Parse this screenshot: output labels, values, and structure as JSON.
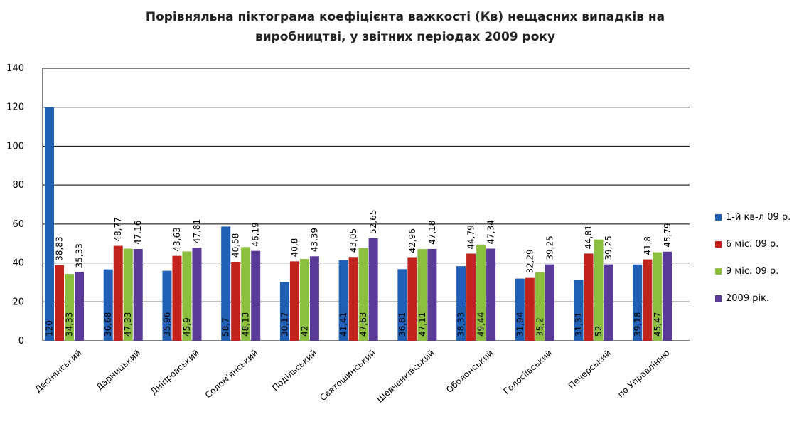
{
  "chart_data": {
    "type": "bar",
    "title": "Порівняльна  піктограма  коефіцієнта  важкості (Кв) нещасних випадків на виробництві,  у звітних періодах  2009 року",
    "categories": [
      "Деснянський",
      "Дарницький",
      "Дніпровський",
      "Солом'янський",
      "Подільський",
      "Святошинський",
      "Шевченківський",
      "Оболонський",
      "Голосіївський",
      "Печерський",
      "по Управлінню"
    ],
    "series": [
      {
        "name": "1-й кв-л 09 р.",
        "color": "#1f5fb4",
        "values": [
          120,
          36.68,
          35.96,
          58.7,
          30.17,
          41.41,
          36.81,
          38.33,
          31.94,
          31.31,
          39.18
        ],
        "labels": [
          "120",
          "36,68",
          "35,96",
          "58,7",
          "30,17",
          "41,41",
          "36,81",
          "38,33",
          "31,94",
          "31,31",
          "39,18"
        ]
      },
      {
        "name": "6 міс. 09 р.",
        "color": "#c0241c",
        "values": [
          38.83,
          48.77,
          43.63,
          40.58,
          40.8,
          43.05,
          42.96,
          44.79,
          32.29,
          44.81,
          41.8
        ],
        "labels": [
          "38,83",
          "48,77",
          "43,63",
          "40,58",
          "40,8",
          "43,05",
          "42,96",
          "44,79",
          "32,29",
          "44,81",
          "41,8"
        ]
      },
      {
        "name": "9 міс. 09 р.",
        "color": "#8cbf3f",
        "values": [
          34.33,
          47.33,
          45.9,
          48.13,
          42,
          47.63,
          47.11,
          49.44,
          35.2,
          52,
          45.47
        ],
        "labels": [
          "34,33",
          "47,33",
          "45,9",
          "48,13",
          "42",
          "47,63",
          "47,11",
          "49,44",
          "35,2",
          "52",
          "45,47"
        ]
      },
      {
        "name": "2009 рік.",
        "color": "#5b3b99",
        "values": [
          35.33,
          47.16,
          47.81,
          46.19,
          43.39,
          52.65,
          47.18,
          47.34,
          39.25,
          39.25,
          45.79
        ],
        "labels": [
          "35,33",
          "47,16",
          "47,81",
          "46,19",
          "43,39",
          "52,65",
          "47,18",
          "47,34",
          "39,25",
          "39,25",
          "45,79"
        ]
      }
    ],
    "yticks": [
      "0",
      "20",
      "40",
      "60",
      "80",
      "100",
      "120",
      "140"
    ],
    "ylim": [
      0,
      140
    ],
    "grid": true,
    "legend_position": "right"
  }
}
